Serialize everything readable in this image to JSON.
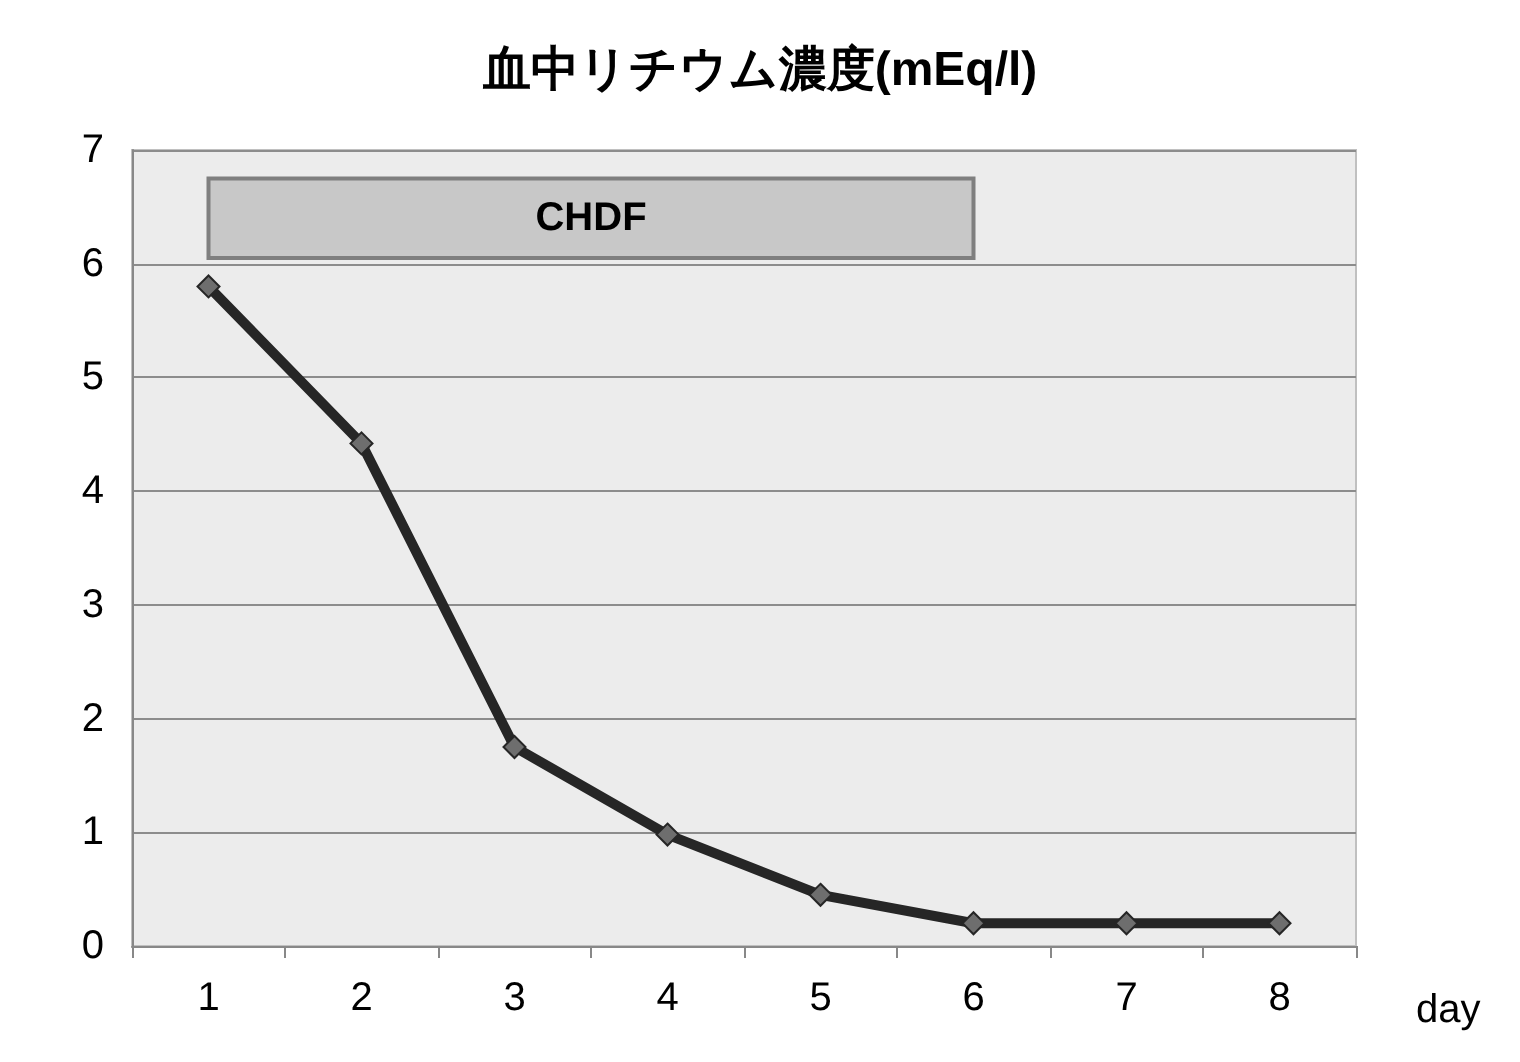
{
  "chart_data": {
    "type": "line",
    "title": "血中リチウム濃度(mEq/l)",
    "xlabel": "day",
    "categories": [
      "1",
      "2",
      "3",
      "4",
      "5",
      "6",
      "7",
      "8"
    ],
    "series": [
      {
        "color": "#262626",
        "values": [
          5.8,
          4.42,
          1.75,
          0.98,
          0.45,
          0.2,
          0.2,
          0.2
        ]
      }
    ],
    "ylim": [
      0,
      7
    ],
    "yticks": [
      0,
      1,
      2,
      3,
      4,
      5,
      6,
      7
    ],
    "grid": "y",
    "marker": "diamond",
    "line_style": "solid",
    "bands": [
      {
        "axis": "x",
        "from": "1",
        "to": "6",
        "label": "CHDF",
        "color": "#c8c8c8"
      }
    ]
  }
}
